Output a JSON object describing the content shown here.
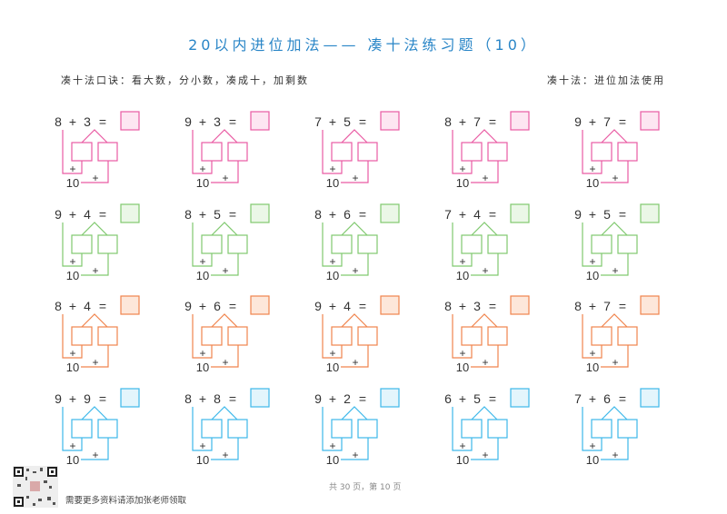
{
  "title": "20以内进位加法—— 凑十法练习题（10）",
  "rhyme": "凑十法口诀：看大数，分小数，凑成十，加剩数",
  "note": "凑十法：进位加法使用",
  "ten_label": "10",
  "plus": "+",
  "equals": "=",
  "row_colors": [
    {
      "stroke": "#e95ba3",
      "fill": "#fde6f2"
    },
    {
      "stroke": "#80c96f",
      "fill": "#ebf7e7"
    },
    {
      "stroke": "#f0844d",
      "fill": "#fde7da"
    },
    {
      "stroke": "#3db8ea",
      "fill": "#e3f5fc"
    }
  ],
  "problems": [
    [
      [
        8,
        3
      ],
      [
        9,
        3
      ],
      [
        7,
        5
      ],
      [
        8,
        7
      ],
      [
        9,
        7
      ]
    ],
    [
      [
        9,
        4
      ],
      [
        8,
        5
      ],
      [
        8,
        6
      ],
      [
        7,
        4
      ],
      [
        9,
        5
      ]
    ],
    [
      [
        8,
        4
      ],
      [
        9,
        6
      ],
      [
        9,
        4
      ],
      [
        8,
        3
      ],
      [
        8,
        7
      ]
    ],
    [
      [
        9,
        9
      ],
      [
        8,
        8
      ],
      [
        9,
        2
      ],
      [
        6,
        5
      ],
      [
        7,
        6
      ]
    ]
  ],
  "footer": {
    "page_info": "共 30 页，第 10 页",
    "promo": "需要更多资料请添加张老师领取",
    "qr_icon": "qr-code-icon"
  }
}
